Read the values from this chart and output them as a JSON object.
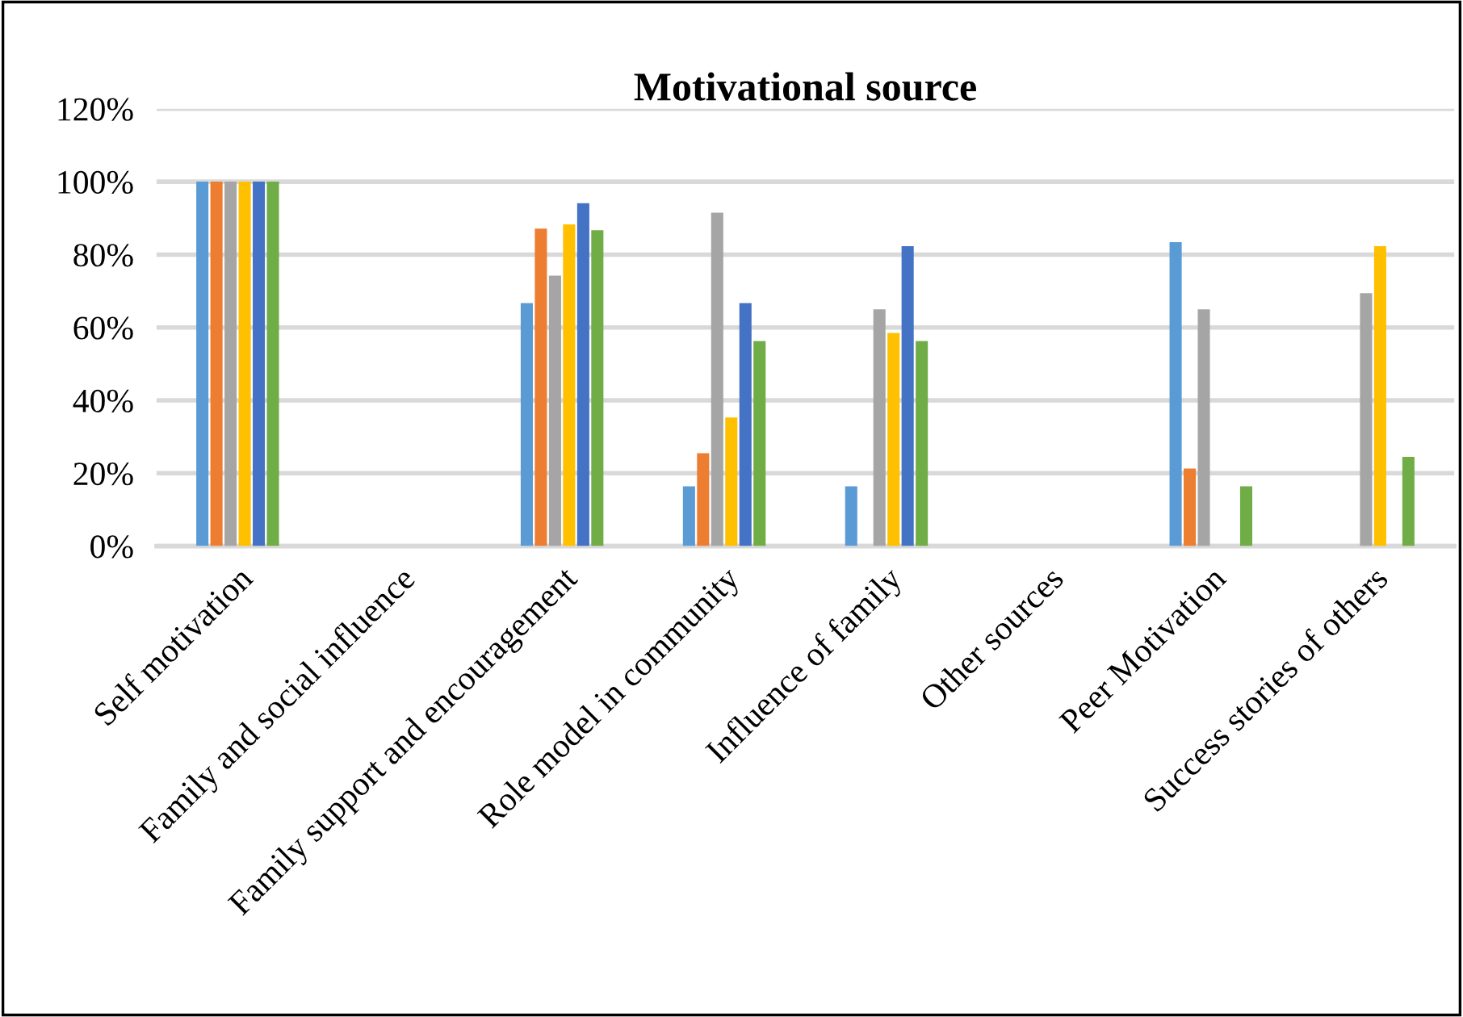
{
  "chart_data": {
    "type": "bar",
    "title": "Motivational source",
    "categories": [
      "Self motivation",
      "Family and social influence",
      "Family support and encouragement",
      "Role model in community",
      "Influence of family",
      "Other sources",
      "Peer Motivation",
      "Success stories of others"
    ],
    "series": [
      {
        "color": "#5b9bd5",
        "values": [
          100,
          0,
          66.7,
          16.4,
          16.4,
          0,
          83.4,
          0
        ]
      },
      {
        "color": "#ed7d31",
        "values": [
          100,
          0,
          87.1,
          25.5,
          0,
          0,
          21.3,
          0
        ]
      },
      {
        "color": "#a5a5a5",
        "values": [
          100,
          0,
          74.2,
          91.5,
          65.0,
          0,
          65.0,
          69.4
        ]
      },
      {
        "color": "#ffc000",
        "values": [
          100,
          0,
          88.3,
          35.3,
          58.5,
          0,
          0,
          82.3
        ]
      },
      {
        "color": "#4472c4",
        "values": [
          100,
          0,
          94.1,
          66.7,
          82.3,
          0,
          0,
          0
        ]
      },
      {
        "color": "#70ad47",
        "values": [
          100,
          0,
          86.7,
          56.3,
          56.3,
          0,
          16.4,
          24.5
        ]
      }
    ],
    "ylim": [
      0,
      120
    ],
    "yticks": [
      {
        "value": 0,
        "label": "0%"
      },
      {
        "value": 20,
        "label": "20%"
      },
      {
        "value": 40,
        "label": "40%"
      },
      {
        "value": 60,
        "label": "60%"
      },
      {
        "value": 80,
        "label": "80%"
      },
      {
        "value": 100,
        "label": "100%"
      },
      {
        "value": 120,
        "label": "120%"
      }
    ],
    "grid": "y",
    "legend": false
  }
}
